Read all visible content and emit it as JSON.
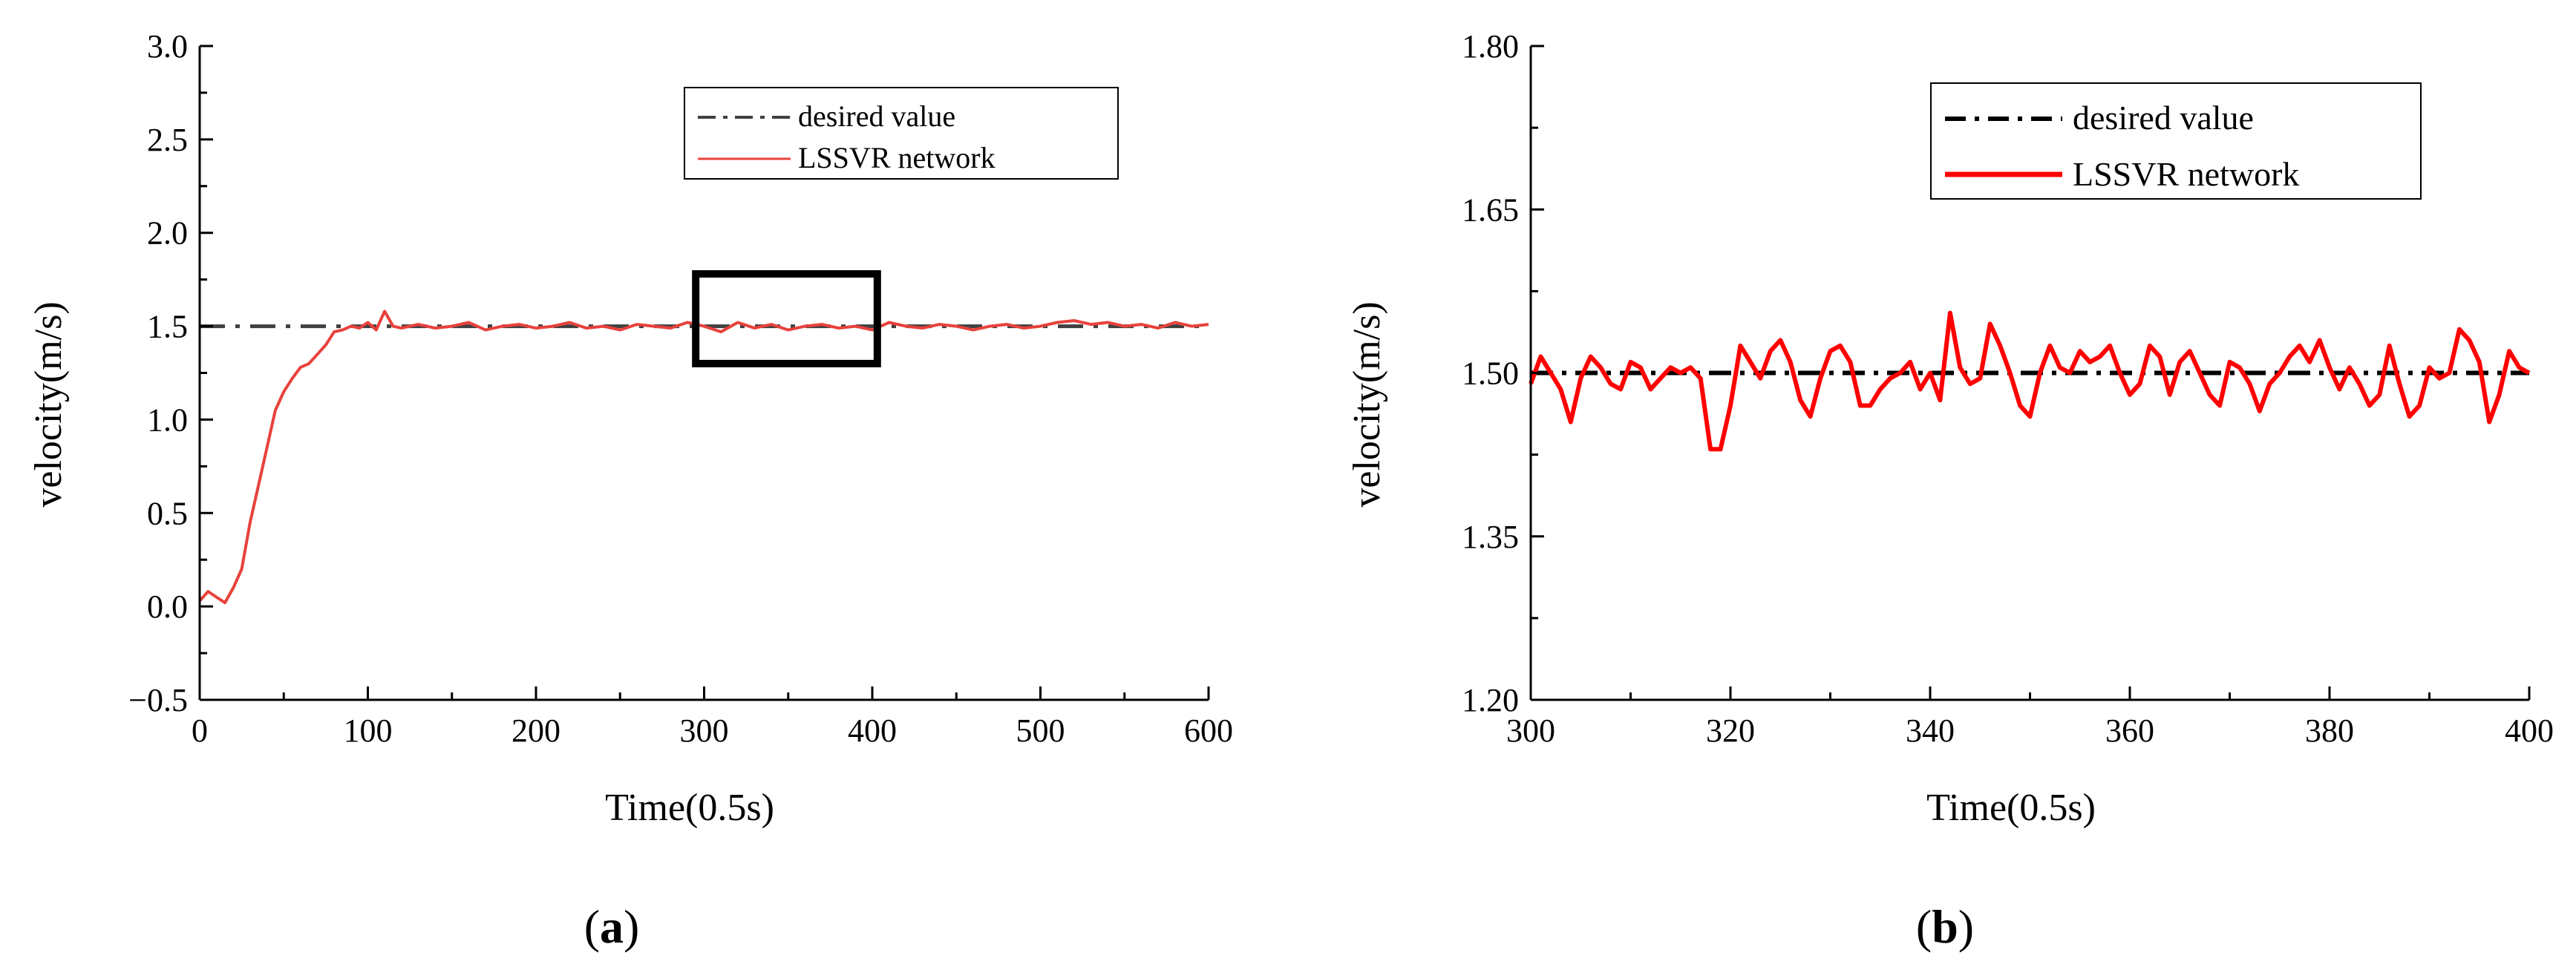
{
  "colors": {
    "desired": "#404040",
    "desired_b": "#000000",
    "lssvr_a": "#e8413c",
    "lssvr_b": "#ff0000",
    "axis": "#000000"
  },
  "chart_data": [
    {
      "id": "a",
      "type": "line",
      "panel_label": "a",
      "xlabel": "Time(0.5s)",
      "ylabel": "velocity(m/s)",
      "xlim": [
        0,
        600
      ],
      "ylim": [
        -0.5,
        3.0
      ],
      "xticks": [
        0,
        100,
        200,
        300,
        400,
        500,
        600
      ],
      "xtick_labels": [
        "0",
        "100",
        "200",
        "300",
        "400",
        "500",
        "600"
      ],
      "yticks": [
        -0.5,
        0.0,
        0.5,
        1.0,
        1.5,
        2.0,
        2.5,
        3.0
      ],
      "ytick_labels": [
        "−0.5",
        "0.0",
        "0.5",
        "1.0",
        "1.5",
        "2.0",
        "2.5",
        "3.0"
      ],
      "legend": {
        "position": "top-right",
        "entries": [
          "desired value",
          "LSSVR network"
        ]
      },
      "zoom_box": {
        "x": [
          295,
          403
        ],
        "y": [
          1.3,
          1.78
        ]
      },
      "series": [
        {
          "name": "desired value",
          "style": "dash-dot",
          "x": [
            0,
            600
          ],
          "y": [
            1.5,
            1.5
          ]
        },
        {
          "name": "LSSVR network",
          "style": "solid",
          "x": [
            0,
            5,
            10,
            15,
            20,
            25,
            30,
            35,
            40,
            45,
            50,
            55,
            60,
            65,
            70,
            75,
            80,
            85,
            90,
            95,
            100,
            105,
            110,
            115,
            120,
            125,
            130,
            140,
            150,
            160,
            170,
            180,
            190,
            200,
            210,
            220,
            230,
            240,
            250,
            260,
            270,
            280,
            290,
            300,
            310,
            320,
            330,
            340,
            350,
            360,
            370,
            380,
            390,
            400,
            410,
            420,
            430,
            440,
            450,
            460,
            470,
            480,
            490,
            500,
            510,
            520,
            530,
            540,
            550,
            560,
            570,
            580,
            590,
            600
          ],
          "y": [
            0.03,
            0.08,
            0.05,
            0.02,
            0.1,
            0.2,
            0.45,
            0.65,
            0.85,
            1.05,
            1.15,
            1.22,
            1.28,
            1.3,
            1.35,
            1.4,
            1.47,
            1.48,
            1.5,
            1.49,
            1.52,
            1.48,
            1.58,
            1.5,
            1.49,
            1.5,
            1.51,
            1.49,
            1.5,
            1.52,
            1.48,
            1.5,
            1.51,
            1.49,
            1.5,
            1.52,
            1.49,
            1.5,
            1.48,
            1.51,
            1.5,
            1.49,
            1.52,
            1.5,
            1.47,
            1.52,
            1.49,
            1.51,
            1.48,
            1.5,
            1.51,
            1.49,
            1.5,
            1.48,
            1.52,
            1.5,
            1.49,
            1.51,
            1.5,
            1.48,
            1.5,
            1.51,
            1.49,
            1.5,
            1.52,
            1.53,
            1.51,
            1.52,
            1.5,
            1.51,
            1.49,
            1.52,
            1.5,
            1.51
          ]
        }
      ]
    },
    {
      "id": "b",
      "type": "line",
      "panel_label": "b",
      "xlabel": "Time(0.5s)",
      "ylabel": "velocity(m/s)",
      "xlim": [
        300,
        400
      ],
      "ylim": [
        1.2,
        1.8
      ],
      "xticks": [
        300,
        320,
        340,
        360,
        380,
        400
      ],
      "xtick_labels": [
        "300",
        "320",
        "340",
        "360",
        "380",
        "400"
      ],
      "yticks": [
        1.2,
        1.35,
        1.5,
        1.65,
        1.8
      ],
      "ytick_labels": [
        "1.20",
        "1.35",
        "1.50",
        "1.65",
        "1.80"
      ],
      "legend": {
        "position": "top-right",
        "entries": [
          "desired value",
          "LSSVR network"
        ]
      },
      "series": [
        {
          "name": "desired value",
          "style": "dash-dot",
          "x": [
            300,
            400
          ],
          "y": [
            1.5,
            1.5
          ]
        },
        {
          "name": "LSSVR network",
          "style": "solid",
          "x": [
            300,
            301,
            302,
            303,
            304,
            305,
            306,
            307,
            308,
            309,
            310,
            311,
            312,
            313,
            314,
            315,
            316,
            317,
            318,
            319,
            320,
            321,
            322,
            323,
            324,
            325,
            326,
            327,
            328,
            329,
            330,
            331,
            332,
            333,
            334,
            335,
            336,
            337,
            338,
            339,
            340,
            341,
            342,
            343,
            344,
            345,
            346,
            347,
            348,
            349,
            350,
            351,
            352,
            353,
            354,
            355,
            356,
            357,
            358,
            359,
            360,
            361,
            362,
            363,
            364,
            365,
            366,
            367,
            368,
            369,
            370,
            371,
            372,
            373,
            374,
            375,
            376,
            377,
            378,
            379,
            380,
            381,
            382,
            383,
            384,
            385,
            386,
            387,
            388,
            389,
            390,
            391,
            392,
            393,
            394,
            395,
            396,
            397,
            398,
            399,
            400
          ],
          "y": [
            1.49,
            1.515,
            1.5,
            1.485,
            1.455,
            1.495,
            1.515,
            1.505,
            1.49,
            1.485,
            1.51,
            1.505,
            1.485,
            1.495,
            1.505,
            1.5,
            1.505,
            1.495,
            1.43,
            1.43,
            1.47,
            1.525,
            1.51,
            1.495,
            1.52,
            1.53,
            1.51,
            1.475,
            1.46,
            1.495,
            1.52,
            1.525,
            1.51,
            1.47,
            1.47,
            1.485,
            1.495,
            1.5,
            1.51,
            1.485,
            1.5,
            1.475,
            1.555,
            1.505,
            1.49,
            1.495,
            1.545,
            1.525,
            1.5,
            1.47,
            1.46,
            1.5,
            1.525,
            1.505,
            1.5,
            1.52,
            1.51,
            1.515,
            1.525,
            1.5,
            1.48,
            1.49,
            1.525,
            1.515,
            1.48,
            1.51,
            1.52,
            1.5,
            1.48,
            1.47,
            1.51,
            1.505,
            1.49,
            1.465,
            1.49,
            1.5,
            1.515,
            1.525,
            1.51,
            1.53,
            1.505,
            1.485,
            1.505,
            1.49,
            1.47,
            1.48,
            1.525,
            1.49,
            1.46,
            1.47,
            1.505,
            1.495,
            1.5,
            1.54,
            1.53,
            1.51,
            1.455,
            1.48,
            1.52,
            1.505,
            1.5
          ]
        }
      ]
    }
  ]
}
